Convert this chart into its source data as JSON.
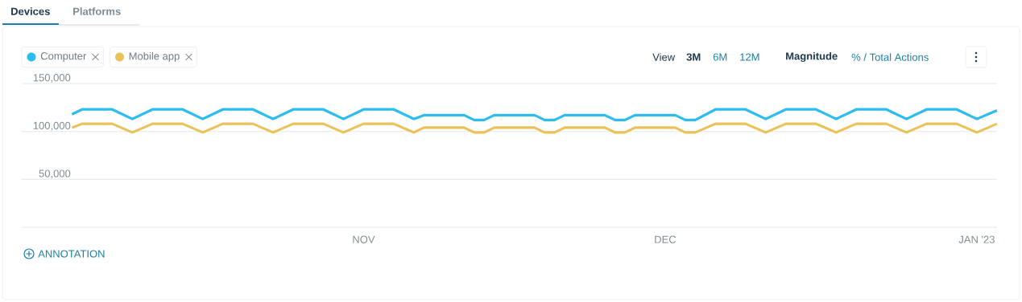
{
  "chart_data": {
    "type": "line",
    "x": [
      "2022-10-03",
      "2022-10-04",
      "2022-10-07",
      "2022-10-09",
      "2022-10-11",
      "2022-10-14",
      "2022-10-16",
      "2022-10-18",
      "2022-10-21",
      "2022-10-23",
      "2022-10-25",
      "2022-10-28",
      "2022-10-30",
      "2022-11-01",
      "2022-11-04",
      "2022-11-06",
      "2022-11-07",
      "2022-11-11",
      "2022-11-12",
      "2022-11-13",
      "2022-11-14",
      "2022-11-18",
      "2022-11-19",
      "2022-11-20",
      "2022-11-21",
      "2022-11-25",
      "2022-11-26",
      "2022-11-27",
      "2022-11-28",
      "2022-12-02",
      "2022-12-03",
      "2022-12-04",
      "2022-12-06",
      "2022-12-09",
      "2022-12-11",
      "2022-12-13",
      "2022-12-16",
      "2022-12-18",
      "2022-12-20",
      "2022-12-23",
      "2022-12-25",
      "2022-12-27",
      "2022-12-30",
      "2023-01-01",
      "2023-01-03"
    ],
    "series": [
      {
        "name": "Computer",
        "color": "#2bbdf0",
        "values": [
          118000,
          123000,
          123000,
          113000,
          123000,
          123000,
          113000,
          123000,
          123000,
          113000,
          123000,
          123000,
          113000,
          123000,
          123000,
          113000,
          117000,
          117000,
          112000,
          112000,
          117000,
          117000,
          112000,
          112000,
          117000,
          117000,
          112000,
          112000,
          117000,
          117000,
          112000,
          112000,
          123000,
          123000,
          113000,
          123000,
          123000,
          113000,
          123000,
          123000,
          113000,
          123000,
          123000,
          113000,
          122000
        ]
      },
      {
        "name": "Mobile app",
        "color": "#ebc25a",
        "values": [
          104000,
          108000,
          108000,
          99000,
          108000,
          108000,
          99000,
          108000,
          108000,
          99000,
          108000,
          108000,
          99000,
          108000,
          108000,
          99000,
          104000,
          104000,
          99000,
          99000,
          104000,
          104000,
          99000,
          99000,
          104000,
          104000,
          99000,
          99000,
          104000,
          104000,
          99000,
          99000,
          108000,
          108000,
          99000,
          108000,
          108000,
          99000,
          108000,
          108000,
          99000,
          108000,
          108000,
          99000,
          108000
        ]
      }
    ],
    "xlim": [
      "2022-09-28",
      "2023-01-03"
    ],
    "xticks": [
      {
        "value": "2022-11-01",
        "label": "NOV"
      },
      {
        "value": "2022-12-01",
        "label": "DEC"
      },
      {
        "value": "2023-01-01",
        "label": "JAN '23"
      }
    ],
    "ylim": [
      0,
      150000
    ],
    "yticks": [
      {
        "value": 0,
        "label": null
      },
      {
        "value": 50000,
        "label": "50,000"
      },
      {
        "value": 100000,
        "label": "100,000"
      },
      {
        "value": 150000,
        "label": "150,000"
      }
    ],
    "grid": "y",
    "legend": "top left",
    "annotations": [
      "Devices",
      "Platforms",
      "View",
      "3M",
      "6M",
      "12M",
      "Magnitude",
      "% / Total Actions",
      "ANNOTATION"
    ]
  }
}
